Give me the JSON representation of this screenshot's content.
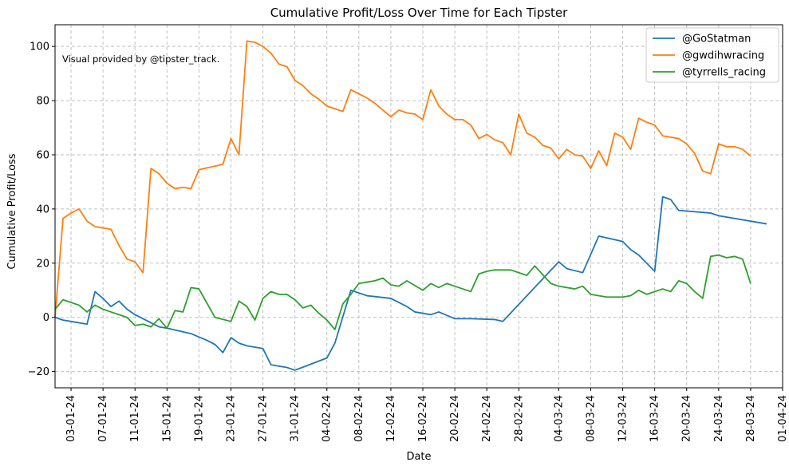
{
  "chart_data": {
    "type": "line",
    "title": "Cumulative Profit/Loss Over Time for Each Tipster",
    "xlabel": "Date",
    "ylabel": "Cumulative Profit/Loss",
    "annotation": "Visual provided by @tipster_track.",
    "x_axis": {
      "type": "date",
      "range": [
        "2024-01-01",
        "2024-04-01"
      ],
      "ticks": [
        "03-01-24",
        "07-01-24",
        "11-01-24",
        "15-01-24",
        "19-01-24",
        "23-01-24",
        "27-01-24",
        "31-01-24",
        "04-02-24",
        "08-02-24",
        "12-02-24",
        "16-02-24",
        "20-02-24",
        "24-02-24",
        "28-02-24",
        "04-03-24",
        "08-03-24",
        "12-03-24",
        "16-03-24",
        "20-03-24",
        "24-03-24",
        "28-03-24",
        "01-04-24"
      ]
    },
    "ylim": [
      -26,
      108
    ],
    "yticks": [
      -20,
      0,
      20,
      40,
      60,
      80,
      100
    ],
    "grid": true,
    "legend_position": "top-right",
    "series": [
      {
        "name": "@GoStatman",
        "color": "#1f77b4",
        "points": [
          [
            "2024-01-01",
            0
          ],
          [
            "2024-01-02",
            -1
          ],
          [
            "2024-01-03",
            -1.5
          ],
          [
            "2024-01-05",
            -2.5
          ],
          [
            "2024-01-06",
            9.5
          ],
          [
            "2024-01-07",
            7
          ],
          [
            "2024-01-08",
            4
          ],
          [
            "2024-01-09",
            6
          ],
          [
            "2024-01-10",
            3
          ],
          [
            "2024-01-11",
            1
          ],
          [
            "2024-01-14",
            -3.5
          ],
          [
            "2024-01-15",
            -4
          ],
          [
            "2024-01-18",
            -6
          ],
          [
            "2024-01-20",
            -8.5
          ],
          [
            "2024-01-21",
            -10
          ],
          [
            "2024-01-22",
            -13
          ],
          [
            "2024-01-23",
            -7.5
          ],
          [
            "2024-01-24",
            -9.5
          ],
          [
            "2024-01-25",
            -10.5
          ],
          [
            "2024-01-27",
            -11.5
          ],
          [
            "2024-01-28",
            -17.5
          ],
          [
            "2024-01-29",
            -18
          ],
          [
            "2024-01-30",
            -18.5
          ],
          [
            "2024-01-31",
            -19.5
          ],
          [
            "2024-02-04",
            -15
          ],
          [
            "2024-02-05",
            -9.5
          ],
          [
            "2024-02-07",
            10
          ],
          [
            "2024-02-08",
            9
          ],
          [
            "2024-02-09",
            8
          ],
          [
            "2024-02-12",
            7
          ],
          [
            "2024-02-14",
            4
          ],
          [
            "2024-02-15",
            2
          ],
          [
            "2024-02-17",
            1
          ],
          [
            "2024-02-18",
            2
          ],
          [
            "2024-02-20",
            -0.5
          ],
          [
            "2024-02-22",
            -0.5
          ],
          [
            "2024-02-25",
            -0.8
          ],
          [
            "2024-02-26",
            -1.5
          ],
          [
            "2024-03-04",
            20.5
          ],
          [
            "2024-03-05",
            18
          ],
          [
            "2024-03-07",
            16.5
          ],
          [
            "2024-03-09",
            30
          ],
          [
            "2024-03-12",
            28
          ],
          [
            "2024-03-13",
            25
          ],
          [
            "2024-03-14",
            23
          ],
          [
            "2024-03-16",
            17
          ],
          [
            "2024-03-17",
            44.5
          ],
          [
            "2024-03-18",
            43.5
          ],
          [
            "2024-03-19",
            39.5
          ],
          [
            "2024-03-23",
            38.5
          ],
          [
            "2024-03-24",
            37.5
          ],
          [
            "2024-03-30",
            34.5
          ]
        ]
      },
      {
        "name": "@gwdihwracing",
        "color": "#ff7f0e",
        "points": [
          [
            "2024-01-01",
            0
          ],
          [
            "2024-01-02",
            36.5
          ],
          [
            "2024-01-03",
            38.5
          ],
          [
            "2024-01-04",
            40
          ],
          [
            "2024-01-05",
            35.5
          ],
          [
            "2024-01-06",
            33.5
          ],
          [
            "2024-01-07",
            33
          ],
          [
            "2024-01-08",
            32.5
          ],
          [
            "2024-01-09",
            26.5
          ],
          [
            "2024-01-10",
            21.5
          ],
          [
            "2024-01-11",
            20.5
          ],
          [
            "2024-01-12",
            16.5
          ],
          [
            "2024-01-13",
            55
          ],
          [
            "2024-01-14",
            53
          ],
          [
            "2024-01-15",
            49.5
          ],
          [
            "2024-01-16",
            47.5
          ],
          [
            "2024-01-17",
            48
          ],
          [
            "2024-01-18",
            47.5
          ],
          [
            "2024-01-19",
            54.5
          ],
          [
            "2024-01-22",
            56.5
          ],
          [
            "2024-01-23",
            66
          ],
          [
            "2024-01-24",
            60
          ],
          [
            "2024-01-25",
            102
          ],
          [
            "2024-01-26",
            101.5
          ],
          [
            "2024-01-27",
            100
          ],
          [
            "2024-01-28",
            97.5
          ],
          [
            "2024-01-29",
            93.5
          ],
          [
            "2024-01-30",
            92.5
          ],
          [
            "2024-01-31",
            87.5
          ],
          [
            "2024-02-01",
            85.5
          ],
          [
            "2024-02-02",
            82.5
          ],
          [
            "2024-02-03",
            80.5
          ],
          [
            "2024-02-04",
            78
          ],
          [
            "2024-02-06",
            76
          ],
          [
            "2024-02-07",
            84
          ],
          [
            "2024-02-08",
            82.5
          ],
          [
            "2024-02-09",
            81
          ],
          [
            "2024-02-10",
            79
          ],
          [
            "2024-02-11",
            76.5
          ],
          [
            "2024-02-12",
            74
          ],
          [
            "2024-02-13",
            76.5
          ],
          [
            "2024-02-14",
            75.5
          ],
          [
            "2024-02-15",
            75
          ],
          [
            "2024-02-16",
            73
          ],
          [
            "2024-02-17",
            84
          ],
          [
            "2024-02-18",
            78
          ],
          [
            "2024-02-19",
            75
          ],
          [
            "2024-02-20",
            73
          ],
          [
            "2024-02-21",
            73
          ],
          [
            "2024-02-22",
            71
          ],
          [
            "2024-02-23",
            66
          ],
          [
            "2024-02-24",
            67.5
          ],
          [
            "2024-02-25",
            65.5
          ],
          [
            "2024-02-26",
            64.5
          ],
          [
            "2024-02-27",
            60
          ],
          [
            "2024-02-28",
            75
          ],
          [
            "2024-02-29",
            68
          ],
          [
            "2024-03-01",
            66.5
          ],
          [
            "2024-03-02",
            63.5
          ],
          [
            "2024-03-03",
            62.5
          ],
          [
            "2024-03-04",
            58.5
          ],
          [
            "2024-03-05",
            62
          ],
          [
            "2024-03-06",
            60
          ],
          [
            "2024-03-07",
            59.5
          ],
          [
            "2024-03-08",
            55
          ],
          [
            "2024-03-09",
            61.5
          ],
          [
            "2024-03-10",
            56
          ],
          [
            "2024-03-11",
            68
          ],
          [
            "2024-03-12",
            66.5
          ],
          [
            "2024-03-13",
            62
          ],
          [
            "2024-03-14",
            73.5
          ],
          [
            "2024-03-15",
            72
          ],
          [
            "2024-03-16",
            71
          ],
          [
            "2024-03-17",
            67
          ],
          [
            "2024-03-19",
            66
          ],
          [
            "2024-03-20",
            64
          ],
          [
            "2024-03-21",
            60.5
          ],
          [
            "2024-03-22",
            54
          ],
          [
            "2024-03-23",
            53
          ],
          [
            "2024-03-24",
            64
          ],
          [
            "2024-03-25",
            63
          ],
          [
            "2024-03-26",
            63
          ],
          [
            "2024-03-27",
            62
          ],
          [
            "2024-03-28",
            59.5
          ]
        ]
      },
      {
        "name": "@tyrrells_racing",
        "color": "#2ca02c",
        "points": [
          [
            "2024-01-01",
            3
          ],
          [
            "2024-01-02",
            6.5
          ],
          [
            "2024-01-04",
            4.5
          ],
          [
            "2024-01-05",
            2
          ],
          [
            "2024-01-06",
            4.5
          ],
          [
            "2024-01-07",
            3
          ],
          [
            "2024-01-08",
            2
          ],
          [
            "2024-01-10",
            0
          ],
          [
            "2024-01-11",
            -3
          ],
          [
            "2024-01-12",
            -2.5
          ],
          [
            "2024-01-13",
            -3.5
          ],
          [
            "2024-01-14",
            -0.5
          ],
          [
            "2024-01-15",
            -4
          ],
          [
            "2024-01-16",
            2.5
          ],
          [
            "2024-01-17",
            2
          ],
          [
            "2024-01-18",
            11
          ],
          [
            "2024-01-19",
            10.5
          ],
          [
            "2024-01-21",
            0
          ],
          [
            "2024-01-23",
            -1.5
          ],
          [
            "2024-01-24",
            6
          ],
          [
            "2024-01-25",
            4
          ],
          [
            "2024-01-26",
            -1
          ],
          [
            "2024-01-27",
            7
          ],
          [
            "2024-01-28",
            9.5
          ],
          [
            "2024-01-29",
            8.5
          ],
          [
            "2024-01-30",
            8.5
          ],
          [
            "2024-01-31",
            6.5
          ],
          [
            "2024-02-01",
            3.5
          ],
          [
            "2024-02-02",
            4.5
          ],
          [
            "2024-02-03",
            1.5
          ],
          [
            "2024-02-04",
            -1
          ],
          [
            "2024-02-05",
            -4.5
          ],
          [
            "2024-02-06",
            5
          ],
          [
            "2024-02-07",
            8.5
          ],
          [
            "2024-02-08",
            12.5
          ],
          [
            "2024-02-09",
            13
          ],
          [
            "2024-02-10",
            13.5
          ],
          [
            "2024-02-11",
            14.5
          ],
          [
            "2024-02-12",
            12
          ],
          [
            "2024-02-13",
            11.5
          ],
          [
            "2024-02-14",
            13.5
          ],
          [
            "2024-02-16",
            10
          ],
          [
            "2024-02-17",
            12.5
          ],
          [
            "2024-02-18",
            11
          ],
          [
            "2024-02-19",
            12.5
          ],
          [
            "2024-02-20",
            11.5
          ],
          [
            "2024-02-22",
            9.5
          ],
          [
            "2024-02-23",
            16
          ],
          [
            "2024-02-24",
            17
          ],
          [
            "2024-02-25",
            17.5
          ],
          [
            "2024-02-26",
            17.5
          ],
          [
            "2024-02-27",
            17.5
          ],
          [
            "2024-02-29",
            15.5
          ],
          [
            "2024-03-01",
            19
          ],
          [
            "2024-03-03",
            12.5
          ],
          [
            "2024-03-04",
            11.5
          ],
          [
            "2024-03-06",
            10.5
          ],
          [
            "2024-03-07",
            11.5
          ],
          [
            "2024-03-08",
            8.5
          ],
          [
            "2024-03-10",
            7.5
          ],
          [
            "2024-03-12",
            7.5
          ],
          [
            "2024-03-13",
            8
          ],
          [
            "2024-03-14",
            10
          ],
          [
            "2024-03-15",
            8.5
          ],
          [
            "2024-03-17",
            10.5
          ],
          [
            "2024-03-18",
            9.5
          ],
          [
            "2024-03-19",
            13.5
          ],
          [
            "2024-03-20",
            12.5
          ],
          [
            "2024-03-21",
            9.5
          ],
          [
            "2024-03-22",
            7
          ],
          [
            "2024-03-23",
            22.5
          ],
          [
            "2024-03-24",
            23
          ],
          [
            "2024-03-25",
            22
          ],
          [
            "2024-03-26",
            22.5
          ],
          [
            "2024-03-27",
            21.5
          ],
          [
            "2024-03-28",
            12.5
          ]
        ]
      }
    ]
  }
}
